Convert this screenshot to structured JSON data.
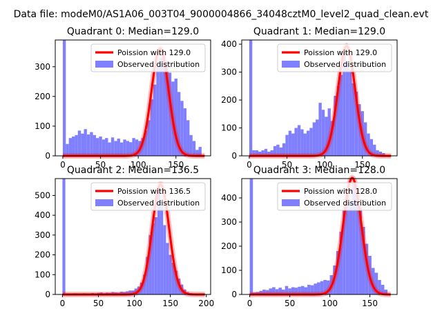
{
  "figure_title": "Data file: modeM0/AS1A06_003T04_9000004866_34048cztM0_level2_quad_clean.evt",
  "colors": {
    "hist": "#8080ff",
    "fit": "#ff0000",
    "axis": "#000000",
    "background": "#ffffff"
  },
  "chart_data": [
    {
      "type": "bar",
      "title": "Quadrant 0: Median=129.0",
      "median": 129.0,
      "xlim": [
        -10,
        196
      ],
      "ylim": [
        0,
        390
      ],
      "xticks": [
        0,
        50,
        100,
        150
      ],
      "yticks": [
        0,
        100,
        200,
        300
      ],
      "bin_width": 4,
      "bin_starts": [
        0,
        4,
        8,
        12,
        16,
        20,
        24,
        28,
        32,
        36,
        40,
        44,
        48,
        52,
        56,
        60,
        64,
        68,
        72,
        76,
        80,
        84,
        88,
        92,
        96,
        100,
        104,
        108,
        112,
        116,
        120,
        124,
        128,
        132,
        136,
        140,
        144,
        148,
        152,
        156,
        160,
        164,
        168,
        172,
        176,
        180,
        184
      ],
      "values": [
        390,
        40,
        60,
        65,
        70,
        85,
        75,
        90,
        72,
        80,
        70,
        60,
        65,
        55,
        60,
        45,
        62,
        50,
        58,
        45,
        55,
        50,
        46,
        60,
        55,
        50,
        60,
        85,
        120,
        190,
        240,
        300,
        330,
        345,
        320,
        280,
        250,
        260,
        215,
        185,
        160,
        120,
        70,
        50,
        20,
        30,
        0
      ],
      "legend": [
        "Poission with 129.0",
        "Observed distribution"
      ]
    },
    {
      "type": "bar",
      "title": "Quadrant 1: Median=129.0",
      "median": 129.0,
      "xlim": [
        -10,
        196
      ],
      "ylim": [
        0,
        415
      ],
      "xticks": [
        0,
        50,
        100,
        150
      ],
      "yticks": [
        0,
        100,
        200,
        300,
        400
      ],
      "bin_width": 4,
      "bin_starts": [
        0,
        4,
        8,
        12,
        16,
        20,
        24,
        28,
        32,
        36,
        40,
        44,
        48,
        52,
        56,
        60,
        64,
        68,
        72,
        76,
        80,
        84,
        88,
        92,
        96,
        100,
        104,
        108,
        112,
        116,
        120,
        124,
        128,
        132,
        136,
        140,
        144,
        148,
        152,
        156,
        160,
        164,
        168,
        172,
        176,
        180,
        184
      ],
      "values": [
        415,
        20,
        20,
        15,
        20,
        25,
        15,
        20,
        35,
        40,
        30,
        45,
        75,
        90,
        80,
        100,
        110,
        95,
        80,
        90,
        100,
        120,
        130,
        190,
        165,
        140,
        170,
        125,
        215,
        250,
        290,
        375,
        340,
        310,
        260,
        230,
        185,
        160,
        120,
        80,
        60,
        40,
        20,
        15,
        10,
        0,
        0
      ],
      "legend": [
        "Poission with 129.0",
        "Observed distribution"
      ]
    },
    {
      "type": "bar",
      "title": "Quadrant 2: Median=136.5",
      "median": 136.5,
      "xlim": [
        -10,
        206
      ],
      "ylim": [
        0,
        585
      ],
      "xticks": [
        0,
        50,
        100,
        150,
        200
      ],
      "yticks": [
        0,
        100,
        200,
        300,
        400,
        500
      ],
      "bin_width": 4,
      "bin_starts": [
        0,
        4,
        8,
        12,
        16,
        20,
        24,
        28,
        32,
        36,
        40,
        44,
        48,
        52,
        56,
        60,
        64,
        68,
        72,
        76,
        80,
        84,
        88,
        92,
        96,
        100,
        104,
        108,
        112,
        116,
        120,
        124,
        128,
        132,
        136,
        140,
        144,
        148,
        152,
        156,
        160,
        164,
        168,
        172,
        176,
        180,
        184,
        188
      ],
      "values": [
        585,
        5,
        4,
        4,
        6,
        5,
        4,
        6,
        5,
        4,
        7,
        5,
        8,
        10,
        6,
        9,
        8,
        12,
        10,
        9,
        14,
        12,
        16,
        20,
        20,
        30,
        40,
        60,
        100,
        190,
        300,
        360,
        390,
        530,
        450,
        350,
        260,
        200,
        160,
        120,
        80,
        50,
        25,
        12,
        6,
        4,
        2,
        1
      ],
      "legend": [
        "Poission with 136.5",
        "Observed distribution"
      ]
    },
    {
      "type": "bar",
      "title": "Quadrant 3: Median=128.0",
      "median": 128.0,
      "xlim": [
        -10,
        184
      ],
      "ylim": [
        0,
        480
      ],
      "xticks": [
        0,
        50,
        100,
        150
      ],
      "yticks": [
        0,
        100,
        200,
        300,
        400
      ],
      "bin_width": 4,
      "bin_starts": [
        0,
        4,
        8,
        12,
        16,
        20,
        24,
        28,
        32,
        36,
        40,
        44,
        48,
        52,
        56,
        60,
        64,
        68,
        72,
        76,
        80,
        84,
        88,
        92,
        96,
        100,
        104,
        108,
        112,
        116,
        120,
        124,
        128,
        132,
        136,
        140,
        144,
        148,
        152,
        156,
        160,
        164,
        168
      ],
      "values": [
        480,
        8,
        10,
        15,
        20,
        18,
        25,
        30,
        22,
        28,
        20,
        35,
        25,
        30,
        28,
        32,
        35,
        30,
        40,
        38,
        45,
        50,
        55,
        60,
        58,
        80,
        120,
        180,
        260,
        350,
        410,
        380,
        460,
        430,
        360,
        280,
        210,
        160,
        110,
        90,
        60,
        40,
        20
      ],
      "legend": [
        "Poission with 128.0",
        "Observed distribution"
      ]
    }
  ]
}
